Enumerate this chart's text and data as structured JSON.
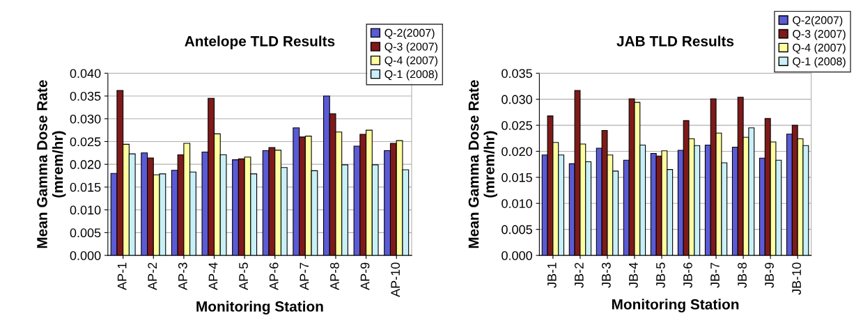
{
  "chart_data": [
    {
      "type": "bar",
      "title": "Antelope TLD Results",
      "xlabel": "Monitoring Station",
      "ylabel": "Mean Gamma Dose Rate\n(mrem/hr)",
      "categories": [
        "AP-1",
        "AP-2",
        "AP-3",
        "AP-4",
        "AP-5",
        "AP-6",
        "AP-7",
        "AP-8",
        "AP-9",
        "AP-10"
      ],
      "series": [
        {
          "name": "Q-2(2007)",
          "color": "#5b5bd6",
          "values": [
            0.018,
            0.0225,
            0.0187,
            0.0227,
            0.021,
            0.023,
            0.028,
            0.035,
            0.024,
            0.023
          ]
        },
        {
          "name": "Q-3 (2007)",
          "color": "#7f1a1a",
          "values": [
            0.0362,
            0.0214,
            0.0221,
            0.0345,
            0.0212,
            0.0237,
            0.026,
            0.0311,
            0.0266,
            0.0246
          ]
        },
        {
          "name": "Q-4 (2007)",
          "color": "#ffffa0",
          "values": [
            0.0244,
            0.0177,
            0.0246,
            0.0267,
            0.0216,
            0.0231,
            0.0262,
            0.0271,
            0.0275,
            0.0252
          ]
        },
        {
          "name": "Q-1 (2008)",
          "color": "#c8f0f8",
          "values": [
            0.0223,
            0.0179,
            0.0183,
            0.0221,
            0.0179,
            0.0193,
            0.0186,
            0.0199,
            0.0199,
            0.0188
          ]
        }
      ],
      "ylim": [
        0,
        0.04
      ],
      "yticks": [
        {
          "value": 0,
          "label": "0.000"
        },
        {
          "value": 0.005,
          "label": "0.005"
        },
        {
          "value": 0.01,
          "label": "0.010"
        },
        {
          "value": 0.015,
          "label": "0.015"
        },
        {
          "value": 0.02,
          "label": "0.020"
        },
        {
          "value": 0.025,
          "label": "0.025"
        },
        {
          "value": 0.03,
          "label": "0.030"
        },
        {
          "value": 0.035,
          "label": "0.035"
        },
        {
          "value": 0.04,
          "label": "0.040"
        }
      ],
      "grid": "y",
      "legend": "top right"
    },
    {
      "type": "bar",
      "title": "JAB TLD Results",
      "xlabel": "Monitoring Station",
      "ylabel": "Mean Gamma Dose Rate\n(mrem/hr)",
      "categories": [
        "JB-1",
        "JB-2",
        "JB-3",
        "JB-4",
        "JB-5",
        "JB-6",
        "JB-7",
        "JB-8",
        "JB-9",
        "JB-10"
      ],
      "series": [
        {
          "name": "Q-2(2007)",
          "color": "#5b5bd6",
          "values": [
            0.0193,
            0.0176,
            0.0206,
            0.0183,
            0.0196,
            0.0202,
            0.0212,
            0.0208,
            0.0187,
            0.0233
          ]
        },
        {
          "name": "Q-3 (2007)",
          "color": "#7f1a1a",
          "values": [
            0.0268,
            0.0317,
            0.024,
            0.0301,
            0.0191,
            0.0259,
            0.0301,
            0.0304,
            0.0263,
            0.025
          ]
        },
        {
          "name": "Q-4 (2007)",
          "color": "#ffffa0",
          "values": [
            0.0217,
            0.0214,
            0.0193,
            0.0294,
            0.0201,
            0.0224,
            0.0235,
            0.0227,
            0.0218,
            0.0224
          ]
        },
        {
          "name": "Q-1 (2008)",
          "color": "#c8f0f8",
          "values": [
            0.0193,
            0.018,
            0.0162,
            0.0212,
            0.0165,
            0.0211,
            0.0178,
            0.0245,
            0.0183,
            0.0211
          ]
        }
      ],
      "ylim": [
        0,
        0.035
      ],
      "yticks": [
        {
          "value": 0,
          "label": "0.000"
        },
        {
          "value": 0.005,
          "label": "0.005"
        },
        {
          "value": 0.01,
          "label": "0.010"
        },
        {
          "value": 0.015,
          "label": "0.015"
        },
        {
          "value": 0.02,
          "label": "0.020"
        },
        {
          "value": 0.025,
          "label": "0.025"
        },
        {
          "value": 0.03,
          "label": "0.030"
        },
        {
          "value": 0.035,
          "label": "0.035"
        }
      ],
      "grid": "y",
      "legend": "top right"
    }
  ]
}
